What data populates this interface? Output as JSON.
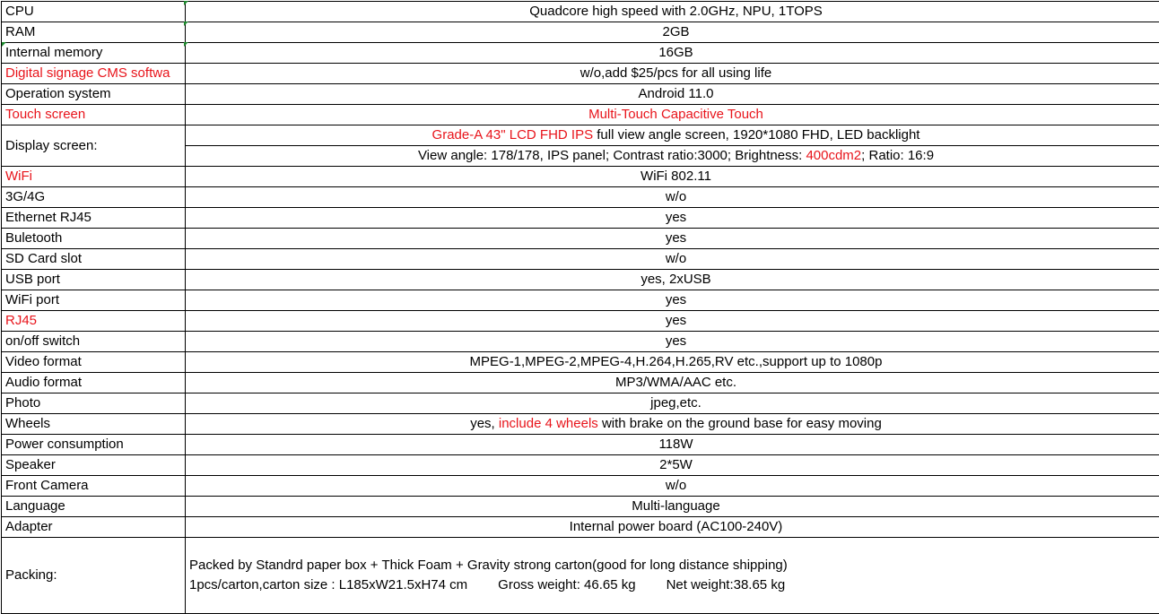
{
  "colors": {
    "highlight": "#e8141b",
    "comment_marker": "#1e8a2e"
  },
  "rows": [
    {
      "label": "CPU",
      "value": "Quadcore high speed with 2.0GHz, NPU, 1TOPS"
    },
    {
      "label": "RAM",
      "value": "2GB"
    },
    {
      "label": "Internal memory",
      "value": "16GB"
    },
    {
      "label": "Digital signage CMS softwa",
      "value": "w/o,add $25/pcs for all using life",
      "label_red": true
    },
    {
      "label": "Operation system",
      "value": "Android 11.0"
    },
    {
      "label": "Touch screen",
      "value": "Multi-Touch Capacitive Touch",
      "label_red": true,
      "value_red": true
    }
  ],
  "display": {
    "label": "Display screen:",
    "line1_red": "Grade-A 43\" LCD FHD IPS ",
    "line1_rest": " full view angle screen, 1920*1080 FHD, LED backlight",
    "line2_a": "View angle: 178/178, IPS panel; Contrast ratio:3000; Brightness: ",
    "line2_red": "400cdm2",
    "line2_b": "; Ratio: 16:9"
  },
  "rows2": [
    {
      "label": "WiFi",
      "value": "WiFi 802.11",
      "label_red": true
    },
    {
      "label": "3G/4G",
      "value": "w/o"
    },
    {
      "label": "Ethernet RJ45",
      "value": "yes"
    },
    {
      "label": "Buletooth",
      "value": "yes"
    },
    {
      "label": "SD Card slot",
      "value": "w/o"
    },
    {
      "label": "USB port",
      "value": "yes, 2xUSB"
    },
    {
      "label": "WiFi port",
      "value": "yes"
    },
    {
      "label": "RJ45",
      "value": "yes",
      "label_red": true
    },
    {
      "label": "on/off switch",
      "value": "yes"
    },
    {
      "label": "Video format",
      "value": "MPEG-1,MPEG-2,MPEG-4,H.264,H.265,RV etc.,support up to 1080p"
    },
    {
      "label": "Audio format",
      "value": "MP3/WMA/AAC etc."
    },
    {
      "label": "Photo",
      "value": "jpeg,etc."
    }
  ],
  "wheels": {
    "label": "Wheels",
    "a": "yes, ",
    "red": "include 4 wheels",
    "b": " with brake on the ground base for easy moving"
  },
  "rows3": [
    {
      "label": "Power consumption",
      "value": "118W"
    },
    {
      "label": "Speaker",
      "value": "2*5W"
    },
    {
      "label": "Front Camera",
      "value": "w/o"
    },
    {
      "label": "Language",
      "value": "Multi-language"
    },
    {
      "label": "Adapter",
      "value": "Internal power board (AC100-240V)"
    }
  ],
  "packing": {
    "label": "Packing:",
    "line1": "Packed by Standrd paper box + Thick Foam + Gravity strong carton(good for long distance shipping)",
    "line2_a": "1pcs/carton,carton size : L185xW21.5xH74 cm",
    "line2_b": "Gross weight: 46.65 kg",
    "line2_c": "Net weight:38.65 kg"
  }
}
